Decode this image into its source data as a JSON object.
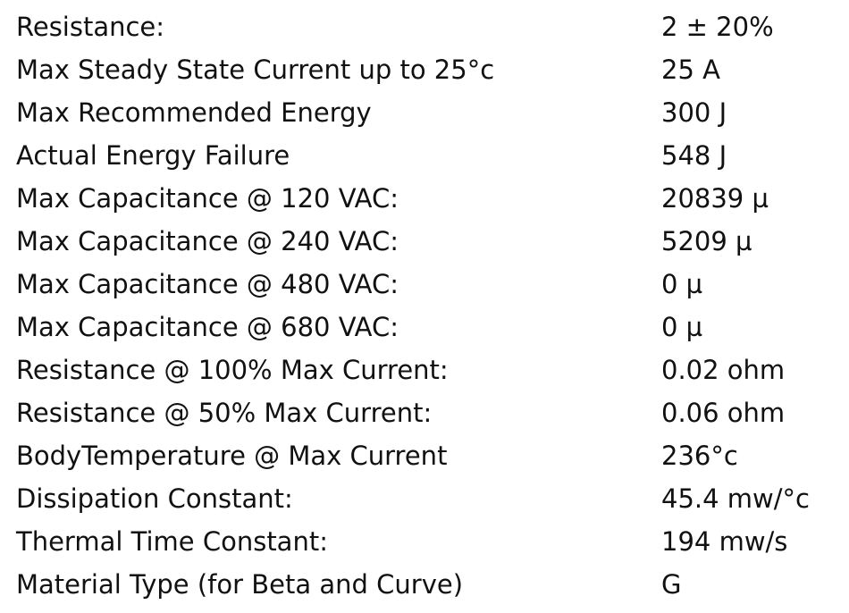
{
  "table": {
    "rows": [
      [
        "Resistance:",
        "2 ± 20%"
      ],
      [
        "Max Steady State Current up to 25°c",
        "25 A"
      ],
      [
        "Max Recommended Energy",
        "300 J"
      ],
      [
        "Actual Energy Failure",
        "548 J"
      ],
      [
        "Max Capacitance @ 120 VAC:",
        "20839 µ"
      ],
      [
        "Max Capacitance @ 240 VAC:",
        "5209 µ"
      ],
      [
        "Max Capacitance @ 480 VAC:",
        "0 µ"
      ],
      [
        "Max Capacitance @ 680 VAC:",
        "0 µ"
      ],
      [
        "Resistance @ 100% Max Current:",
        "0.02 ohm"
      ],
      [
        "Resistance @ 50% Max Current:",
        "0.06 ohm"
      ],
      [
        "BodyTemperature @ Max Current",
        "236°c"
      ],
      [
        "Dissipation Constant:",
        "45.4 mw/°c"
      ],
      [
        "Thermal Time Constant:",
        "194 mw/s"
      ],
      [
        "Material Type (for Beta and Curve)",
        "G"
      ]
    ]
  }
}
